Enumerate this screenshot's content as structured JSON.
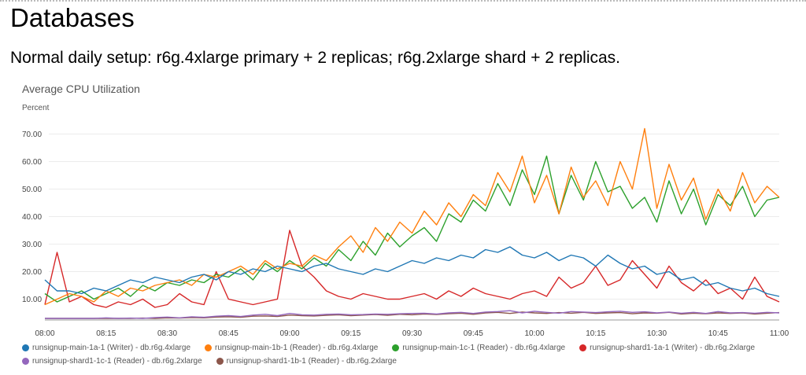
{
  "page": {
    "title": "Databases",
    "subtitle": "Normal daily setup: r6g.4xlarge primary + 2 replicas; r6g.2xlarge shard + 2 replicas."
  },
  "chart_data": {
    "type": "line",
    "title": "Average CPU Utilization",
    "ylabel": "Percent",
    "xlabel": "",
    "ylim": [
      3,
      76
    ],
    "yticks": [
      "10.00",
      "20.00",
      "30.00",
      "40.00",
      "50.00",
      "60.00",
      "70.00"
    ],
    "ytick_values": [
      10,
      20,
      30,
      40,
      50,
      60,
      70
    ],
    "xticks": [
      "08:00",
      "08:15",
      "08:30",
      "08:45",
      "09:00",
      "09:15",
      "09:30",
      "09:45",
      "10:00",
      "10:15",
      "10:30",
      "10:45",
      "11:00"
    ],
    "x_range_minutes": [
      0,
      180
    ],
    "sample_interval_minutes": 3,
    "grid": true,
    "legend_placement": "bottom",
    "series": [
      {
        "name": "runsignup-main-1a-1 (Writer) - db.r6g.4xlarge",
        "color": "#1f77b4",
        "values": [
          17,
          13,
          13,
          12,
          14,
          13,
          15,
          17,
          16,
          18,
          17,
          16,
          18,
          19,
          17,
          20,
          19,
          21,
          20,
          22,
          21,
          20,
          22,
          23,
          21,
          20,
          19,
          21,
          20,
          22,
          24,
          23,
          25,
          24,
          26,
          25,
          28,
          27,
          29,
          26,
          25,
          27,
          24,
          26,
          25,
          22,
          26,
          23,
          21,
          22,
          19,
          20,
          17,
          18,
          15,
          16,
          14,
          13,
          14,
          12,
          11
        ]
      },
      {
        "name": "runsignup-main-1b-1 (Reader) - db.r6g.4xlarge",
        "color": "#ff7f0e",
        "values": [
          8,
          10,
          12,
          11,
          9,
          13,
          11,
          14,
          13,
          15,
          16,
          17,
          15,
          19,
          18,
          20,
          22,
          19,
          24,
          21,
          23,
          22,
          26,
          24,
          29,
          33,
          27,
          36,
          31,
          38,
          34,
          42,
          37,
          45,
          40,
          48,
          44,
          56,
          49,
          62,
          45,
          55,
          41,
          58,
          47,
          53,
          44,
          60,
          50,
          72,
          43,
          59,
          46,
          54,
          39,
          50,
          42,
          56,
          45,
          51,
          47
        ]
      },
      {
        "name": "runsignup-main-1c-1 (Reader) - db.r6g.4xlarge",
        "color": "#2ca02c",
        "values": [
          12,
          9,
          11,
          13,
          10,
          12,
          14,
          11,
          15,
          13,
          16,
          15,
          17,
          16,
          19,
          18,
          21,
          17,
          23,
          20,
          24,
          21,
          25,
          22,
          28,
          24,
          31,
          26,
          34,
          29,
          33,
          36,
          31,
          41,
          38,
          46,
          42,
          52,
          44,
          57,
          48,
          62,
          41,
          55,
          46,
          60,
          49,
          51,
          43,
          47,
          38,
          53,
          41,
          50,
          37,
          48,
          44,
          51,
          40,
          46,
          47
        ]
      },
      {
        "name": "runsignup-shard1-1a-1 (Writer) - db.r6g.2xlarge",
        "color": "#d62728",
        "values": [
          8,
          27,
          9,
          11,
          8,
          7,
          9,
          8,
          10,
          7,
          8,
          12,
          9,
          8,
          20,
          10,
          9,
          8,
          9,
          10,
          35,
          22,
          18,
          13,
          11,
          10,
          12,
          11,
          10,
          10,
          11,
          12,
          10,
          13,
          11,
          14,
          12,
          11,
          10,
          12,
          13,
          11,
          18,
          14,
          16,
          22,
          15,
          17,
          24,
          19,
          14,
          22,
          16,
          13,
          17,
          12,
          14,
          10,
          18,
          11,
          9
        ]
      },
      {
        "name": "runsignup-shard1-1c-1 (Reader) - db.r6g.2xlarge",
        "color": "#9467bd",
        "values": [
          3,
          3,
          3,
          2.8,
          3,
          3.2,
          3,
          3.1,
          3,
          3.3,
          3.5,
          3.2,
          3.6,
          3.4,
          3.8,
          4,
          3.7,
          4.2,
          4.5,
          4,
          4.8,
          4.3,
          4.2,
          4.5,
          4.6,
          4.3,
          4.4,
          4.6,
          4.5,
          4.7,
          4.8,
          4.9,
          4.6,
          5,
          5.2,
          4.8,
          5.3,
          5.5,
          5.8,
          5,
          5.6,
          5.2,
          4.9,
          5.5,
          5.3,
          5.1,
          5.4,
          5.6,
          5.2,
          5.4,
          5,
          5.3,
          4.9,
          5.2,
          4.8,
          5.5,
          5,
          5.1,
          4.9,
          5.2,
          5
        ]
      },
      {
        "name": "runsignup-shard1-1b-1 (Reader) - db.r6g.2xlarge",
        "color": "#8c564b",
        "values": [
          2.8,
          3,
          2.7,
          2.9,
          3,
          2.8,
          3,
          2.9,
          3.1,
          3,
          3.2,
          3.1,
          3.3,
          3.2,
          3.5,
          3.6,
          3.4,
          3.8,
          3.9,
          3.7,
          4.2,
          4,
          3.9,
          4.1,
          4.3,
          4,
          4.2,
          4.4,
          4.1,
          4.5,
          4.3,
          4.6,
          4.4,
          4.7,
          4.9,
          4.5,
          5,
          5.2,
          4.8,
          5.3,
          5,
          4.8,
          5.1,
          4.9,
          5.2,
          4.8,
          5,
          5.1,
          4.7,
          5,
          4.9,
          5.2,
          4.6,
          4.9,
          4.7,
          5,
          4.8,
          5,
          4.6,
          4.9,
          5.1
        ]
      }
    ]
  }
}
